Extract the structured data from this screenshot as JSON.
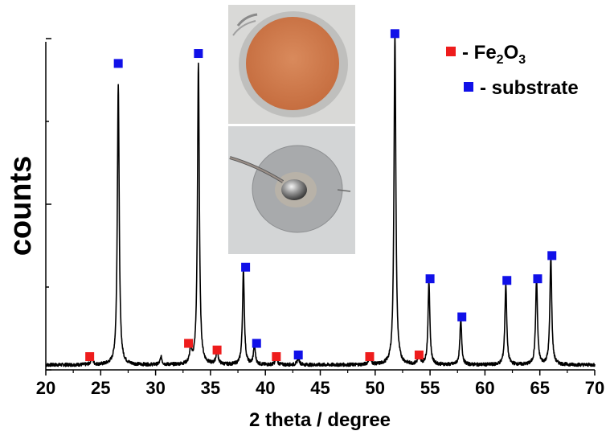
{
  "chart_data": {
    "type": "line",
    "xlabel": "2 theta / degree",
    "ylabel": "counts",
    "xlim": [
      20,
      70
    ],
    "ylim": [
      0,
      100
    ],
    "x_ticks": [
      20,
      25,
      30,
      35,
      40,
      45,
      50,
      55,
      60,
      65,
      70
    ],
    "y_tick_labels_shown": false,
    "grid": false,
    "baseline": 1.5,
    "peaks": [
      {
        "x": 24.2,
        "y": 2.5,
        "w": 0.1
      },
      {
        "x": 26.6,
        "y": 85.0,
        "w": 0.1
      },
      {
        "x": 30.5,
        "y": 2.3,
        "w": 0.1
      },
      {
        "x": 33.2,
        "y": 4.8,
        "w": 0.1
      },
      {
        "x": 33.9,
        "y": 91.0,
        "w": 0.1
      },
      {
        "x": 35.6,
        "y": 4.0,
        "w": 0.12
      },
      {
        "x": 38.0,
        "y": 28.5,
        "w": 0.1
      },
      {
        "x": 39.0,
        "y": 6.0,
        "w": 0.1
      },
      {
        "x": 41.0,
        "y": 2.0,
        "w": 0.12
      },
      {
        "x": 43.0,
        "y": 2.0,
        "w": 0.12
      },
      {
        "x": 49.5,
        "y": 2.5,
        "w": 0.12
      },
      {
        "x": 51.8,
        "y": 100.0,
        "w": 0.1
      },
      {
        "x": 54.0,
        "y": 3.0,
        "w": 0.12
      },
      {
        "x": 54.9,
        "y": 25.0,
        "w": 0.1
      },
      {
        "x": 57.8,
        "y": 13.5,
        "w": 0.1
      },
      {
        "x": 61.9,
        "y": 24.5,
        "w": 0.1
      },
      {
        "x": 64.7,
        "y": 26.0,
        "w": 0.1
      },
      {
        "x": 66.0,
        "y": 32.5,
        "w": 0.1
      }
    ],
    "series": [
      {
        "name": "Fe2O3",
        "color": "#ee1c1c",
        "marker": "square",
        "points": [
          {
            "x": 24.0,
            "y": 4.0
          },
          {
            "x": 33.0,
            "y": 8.0
          },
          {
            "x": 35.6,
            "y": 6.0
          },
          {
            "x": 41.0,
            "y": 4.0
          },
          {
            "x": 49.5,
            "y": 4.0
          },
          {
            "x": 54.0,
            "y": 4.5
          }
        ]
      },
      {
        "name": "substrate",
        "color": "#1010e8",
        "marker": "square",
        "points": [
          {
            "x": 26.6,
            "y": 92.5
          },
          {
            "x": 33.9,
            "y": 95.5
          },
          {
            "x": 38.2,
            "y": 31.0
          },
          {
            "x": 39.2,
            "y": 8.0
          },
          {
            "x": 43.0,
            "y": 4.5
          },
          {
            "x": 51.8,
            "y": 101.5
          },
          {
            "x": 55.0,
            "y": 27.5
          },
          {
            "x": 57.9,
            "y": 16.0
          },
          {
            "x": 62.0,
            "y": 27.0
          },
          {
            "x": 64.8,
            "y": 27.5
          },
          {
            "x": 66.1,
            "y": 34.5
          }
        ]
      }
    ],
    "legend": {
      "placement": "top-right",
      "items": [
        {
          "prefix": "- Fe",
          "sub1": "2",
          "mid": "O",
          "sub2": "3",
          "color": "#ee1c1c"
        },
        {
          "prefix": "- substrate",
          "sub1": "",
          "mid": "",
          "sub2": "",
          "color": "#1010e8"
        }
      ]
    },
    "insets": [
      {
        "name": "photo-electrode-front",
        "description_hidden": true
      },
      {
        "name": "photo-electrode-back",
        "description_hidden": true
      }
    ]
  }
}
